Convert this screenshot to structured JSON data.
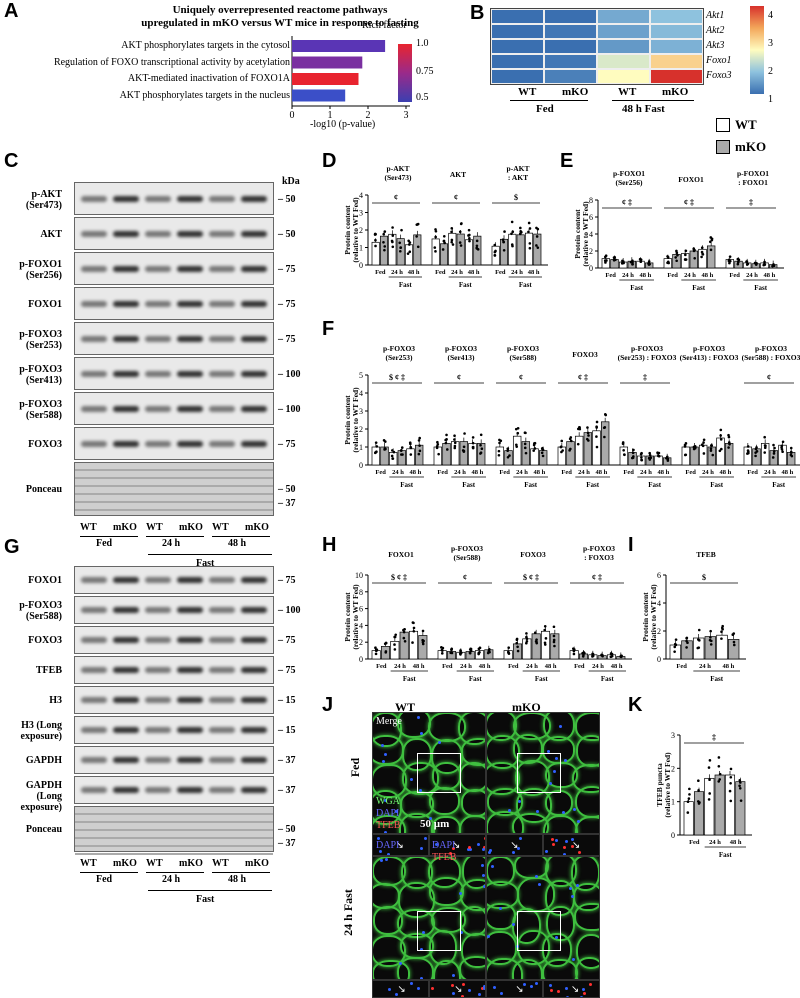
{
  "panels": {
    "A": "A",
    "B": "B",
    "C": "C",
    "D": "D",
    "E": "E",
    "F": "F",
    "G": "G",
    "H": "H",
    "I": "I",
    "J": "J",
    "K": "K"
  },
  "panelA": {
    "title_line1": "Uniquely overrepresented reactome pathways",
    "title_line2": "upregulated in mKO versus WT mice in response to fasting",
    "pathways": [
      "AKT phosphorylates targets in the cytosol",
      "Regulation of FOXO transcriptional activity by acetylation",
      "AKT-mediated inactivation of FOXO1A",
      "AKT phosphorylates targets in the nucleus"
    ],
    "xlabel": "-log10 (p-value)",
    "xticks": [
      "0",
      "1",
      "2",
      "3"
    ],
    "legend_title": "Rich factor",
    "legend_ticks": [
      "1.0",
      "0.75",
      "0.5"
    ]
  },
  "panelB": {
    "genes": [
      "Akt1",
      "Akt2",
      "Akt3",
      "Foxo1",
      "Foxo3"
    ],
    "groups": [
      "WT",
      "mKO",
      "WT",
      "mKO"
    ],
    "conditions": [
      "Fed",
      "48 h Fast"
    ],
    "scale_ticks": [
      "4",
      "3",
      "2",
      "1"
    ]
  },
  "legend": {
    "wt": "WT",
    "mko": "mKO"
  },
  "blotC": {
    "labels": [
      "p-AKT (Ser473)",
      "AKT",
      "p-FOXO1 (Ser256)",
      "FOXO1",
      "p-FOXO3 (Ser253)",
      "p-FOXO3 (Ser413)",
      "p-FOXO3 (Ser588)",
      "FOXO3",
      "Ponceau"
    ],
    "kda_title": "kDa",
    "kda": [
      "50",
      "50",
      "75",
      "75",
      "75",
      "100",
      "100",
      "75",
      "50",
      "37"
    ],
    "lanes": [
      "WT",
      "mKO",
      "WT",
      "mKO",
      "WT",
      "mKO"
    ],
    "conditions": [
      "Fed",
      "24 h",
      "48 h"
    ],
    "fast": "Fast"
  },
  "blotG": {
    "labels": [
      "FOXO1",
      "p-FOXO3 (Ser588)",
      "FOXO3",
      "TFEB",
      "H3",
      "H3 (Long exposure)",
      "GAPDH",
      "GAPDH (Long exposure)",
      "Ponceau"
    ],
    "kda": [
      "75",
      "100",
      "75",
      "75",
      "15",
      "15",
      "37",
      "37",
      "50",
      "37"
    ],
    "lanes": [
      "WT",
      "mKO",
      "WT",
      "mKO",
      "WT",
      "mKO"
    ],
    "conditions": [
      "Fed",
      "24 h",
      "48 h"
    ],
    "fast": "Fast"
  },
  "ylabel": "Protein content",
  "ylabel2": "(relative to WT Fed)",
  "xcats": [
    "Fed",
    "24 h",
    "48 h"
  ],
  "fast": "Fast",
  "panelD": {
    "titles": [
      "p-AKT (Ser473)",
      "AKT",
      "p-AKT : AKT"
    ],
    "symbols": [
      "¢",
      "¢",
      "$"
    ],
    "yticks": [
      "4",
      "3",
      "2",
      "1",
      "0"
    ]
  },
  "panelE": {
    "titles": [
      "p-FOXO1 (Ser256)",
      "FOXO1",
      "p-FOXO1 : FOXO1"
    ],
    "symbols": [
      "¢ ‡",
      "¢ ‡",
      "‡"
    ],
    "marks": [
      "¶",
      "¶ #"
    ],
    "yticks": [
      "8",
      "6",
      "4",
      "2",
      "0"
    ]
  },
  "panelF": {
    "titles": [
      "p-FOXO3 (Ser253)",
      "p-FOXO3 (Ser413)",
      "p-FOXO3 (Ser588)",
      "FOXO3",
      "p-FOXO3 (Ser253) : FOXO3",
      "p-FOXO3 (Ser413) : FOXO3",
      "p-FOXO3 (Ser588) : FOXO3"
    ],
    "symbols": [
      "$ ¢ ‡",
      "¢",
      "¢",
      "¢ ‡",
      "‡",
      "",
      "¢"
    ],
    "marks": "¶",
    "yticks": [
      "5",
      "4",
      "3",
      "2",
      "1",
      "0"
    ]
  },
  "panelH": {
    "titles": [
      "FOXO1",
      "p-FOXO3 (Ser588)",
      "FOXO3",
      "p-FOXO3 : FOXO3"
    ],
    "symbols": [
      "$ ¢ ‡",
      "¢",
      "$ ¢ ‡",
      "¢ ‡"
    ],
    "marks": [
      "# ¶",
      "¶",
      "¶ ¶"
    ],
    "yticks": [
      "10",
      "8",
      "6",
      "4",
      "2",
      "0"
    ]
  },
  "panelI": {
    "title": "TFEB",
    "symbol": "$",
    "yticks": [
      "6",
      "4",
      "2",
      "0"
    ]
  },
  "panelJ": {
    "cols": [
      "WT",
      "mKO"
    ],
    "rows": [
      "Fed",
      "24 h Fast"
    ],
    "merge": "Merge",
    "wga": "WGA",
    "dapi": "DAPI",
    "tfeb": "TFEB",
    "scale": "50 µm"
  },
  "panelK": {
    "ylabel": "TFEB puncta",
    "ylabel2": "(relative to WT Fed)",
    "symbol": "‡",
    "marks": "¶ ¶",
    "yticks": [
      "3",
      "2",
      "1",
      "0"
    ]
  },
  "chart_data": [
    {
      "type": "bar",
      "title": "A",
      "categories": [
        "AKT phosphorylates targets in the cytosol",
        "Regulation of FOXO transcriptional activity by acetylation",
        "AKT-mediated inactivation of FOXO1A",
        "AKT phosphorylates targets in the nucleus"
      ],
      "values": [
        2.45,
        1.85,
        1.75,
        1.4
      ],
      "rich_factor": [
        0.55,
        0.7,
        1.0,
        0.5
      ],
      "xlabel": "-log10 (p-value)",
      "xlim": [
        0,
        3
      ]
    },
    {
      "type": "heatmap",
      "title": "B",
      "rows": [
        "Akt1",
        "Akt2",
        "Akt3",
        "Foxo1",
        "Foxo3"
      ],
      "cols": [
        "WT Fed",
        "mKO Fed",
        "WT 48 h Fast",
        "mKO 48 h Fast"
      ],
      "values": [
        [
          1.0,
          1.0,
          1.7,
          2.0
        ],
        [
          1.0,
          1.1,
          1.6,
          1.9
        ],
        [
          1.0,
          1.0,
          1.5,
          1.8
        ],
        [
          1.0,
          1.1,
          2.4,
          2.9
        ],
        [
          1.0,
          1.2,
          2.6,
          4.0
        ]
      ],
      "range": [
        1,
        4
      ]
    }
  ]
}
